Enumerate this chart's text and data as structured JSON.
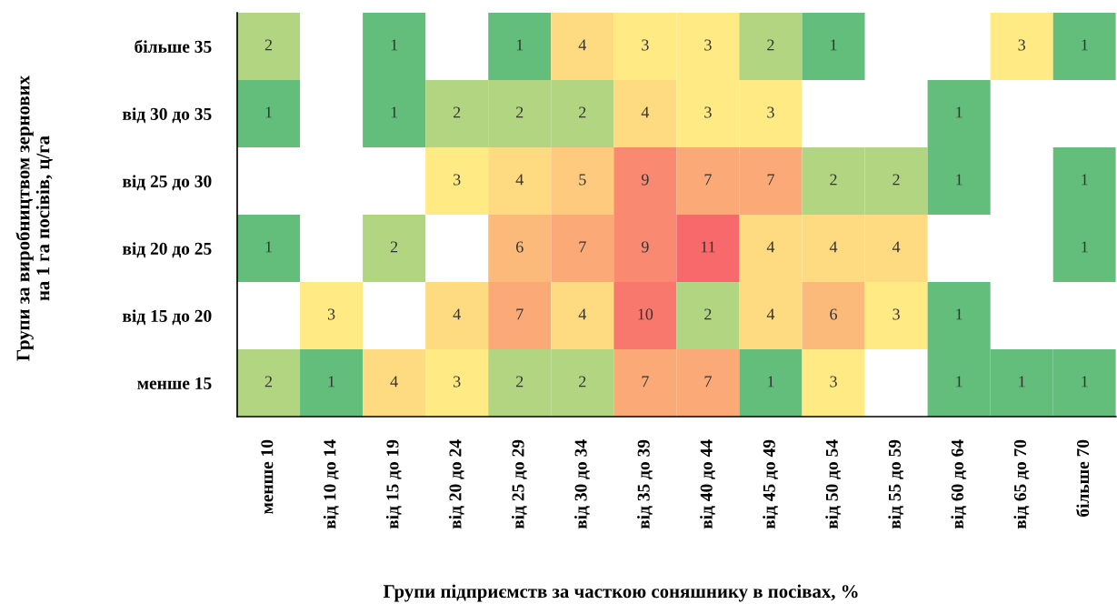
{
  "chart_data": {
    "type": "heatmap",
    "xlabel": "Групи підприємств за часткою соняшнику в посівах, %",
    "ylabel": "Групи за виробництвом зернових\nна 1 га посівів, ц/га",
    "categories": [
      "менше 10",
      "від 10 до 14",
      "від 15 до 19",
      "від 20 до 24",
      "від 25 до 29",
      "від 30 до 34",
      "від 35 до 39",
      "від 40 до 44",
      "від 45 до 49",
      "від 50 до 54",
      "від 55 до 59",
      "від 60 до 64",
      "від 65 до 70",
      "більше 70"
    ],
    "y_categories": [
      "більше 35",
      "від 30 до 35",
      "від 25 до 30",
      "від 20 до 25",
      "від 15 до 20",
      "менше 15"
    ],
    "cells": [
      [
        2,
        null,
        1,
        null,
        1,
        4,
        3,
        3,
        2,
        1,
        null,
        null,
        3,
        1
      ],
      [
        1,
        null,
        1,
        2,
        2,
        2,
        4,
        3,
        3,
        null,
        null,
        1,
        null,
        null
      ],
      [
        null,
        null,
        null,
        3,
        4,
        5,
        9,
        7,
        7,
        2,
        2,
        1,
        null,
        1
      ],
      [
        1,
        null,
        2,
        null,
        6,
        7,
        9,
        11,
        4,
        4,
        4,
        null,
        null,
        1
      ],
      [
        null,
        3,
        null,
        4,
        7,
        4,
        10,
        2,
        4,
        6,
        3,
        1,
        null,
        null
      ],
      [
        2,
        1,
        4,
        3,
        2,
        2,
        7,
        7,
        1,
        3,
        null,
        1,
        1,
        1
      ]
    ],
    "data_labels": true
  }
}
